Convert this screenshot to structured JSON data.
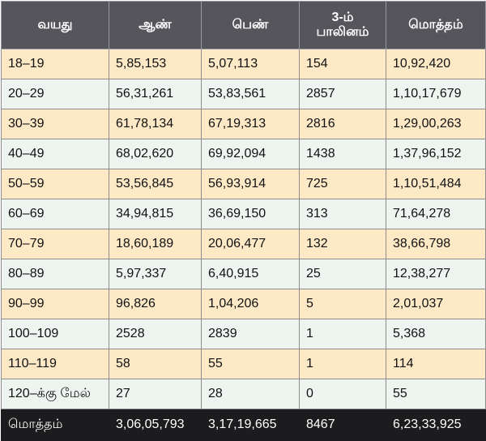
{
  "headers": [
    "வயது",
    "ஆண்",
    "பெண்",
    "3-ம்\nபாலினம்",
    "மொத்தம்"
  ],
  "rows": [
    [
      "18–19",
      "5,85,153",
      "5,07,113",
      "154",
      "10,92,420"
    ],
    [
      "20–29",
      "56,31,261",
      "53,83,561",
      "2857",
      "1,10,17,679"
    ],
    [
      "30–39",
      "61,78,134",
      "67,19,313",
      "2816",
      "1,29,00,263"
    ],
    [
      "40–49",
      "68,02,620",
      "69,92,094",
      "1438",
      "1,37,96,152"
    ],
    [
      "50–59",
      "53,56,845",
      "56,93,914",
      "725",
      "1,10,51,484"
    ],
    [
      "60–69",
      "34,94,815",
      "36,69,150",
      "313",
      "71,64,278"
    ],
    [
      "70–79",
      "18,60,189",
      "20,06,477",
      "132",
      "38,66,798"
    ],
    [
      "80–89",
      "5,97,337",
      "6,40,915",
      "25",
      "12,38,277"
    ],
    [
      "90–99",
      "96,826",
      "1,04,206",
      "5",
      "2,01,037"
    ],
    [
      "100–109",
      "2528",
      "2839",
      "1",
      "5,368"
    ],
    [
      "110–119",
      "58",
      "55",
      "1",
      "114"
    ],
    [
      "120–க்கு மேல்",
      "27",
      "28",
      "0",
      "55"
    ]
  ],
  "total": [
    "மொத்தம்",
    "3,06,05,793",
    "3,17,19,665",
    "8467",
    "6,23,33,925"
  ],
  "colors": {
    "header_bg": "#55555b",
    "row_odd_bg": "#fde9c6",
    "row_even_bg": "#eef5f1",
    "total_bg": "#1c1c1e"
  }
}
